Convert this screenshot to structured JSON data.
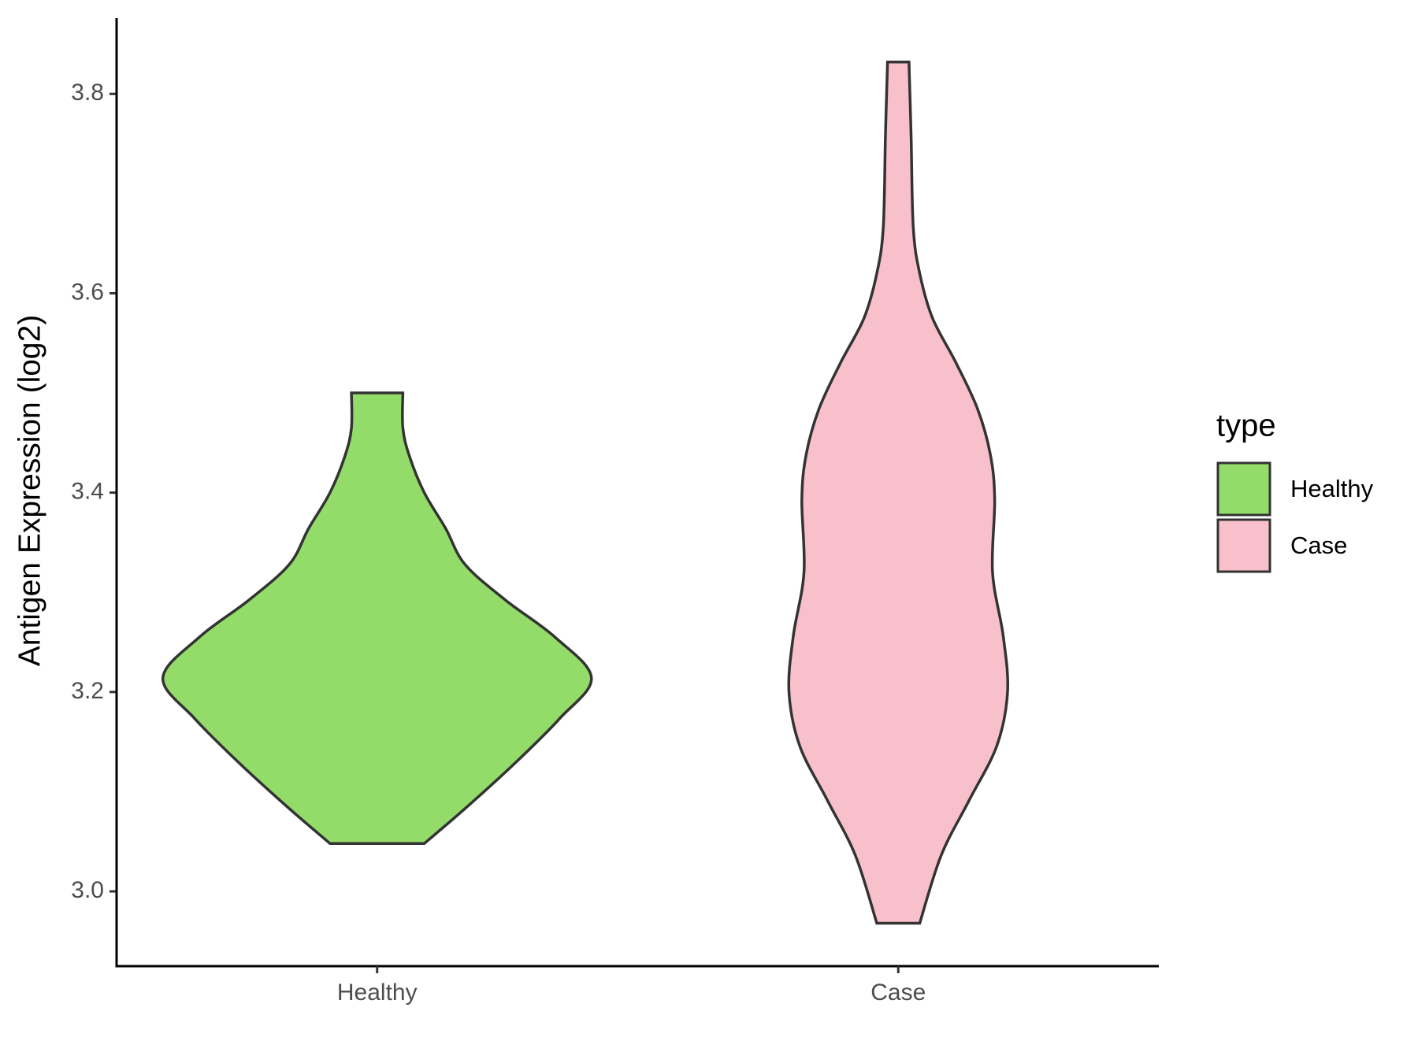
{
  "chart_data": {
    "type": "violin",
    "y_label": "Antigen Expression (log2)",
    "legend_title": "type",
    "categories": [
      "Healthy",
      "Case"
    ],
    "ylim": [
      2.925,
      3.876
    ],
    "yticks": [
      {
        "value": 3.0,
        "label": "3.0"
      },
      3.2,
      3.4,
      3.6,
      3.8
    ],
    "series": [
      {
        "name": "Healthy",
        "color": "#93dc6a",
        "y": [
          3.5,
          3.465,
          3.437,
          3.4,
          3.364,
          3.328,
          3.292,
          3.255,
          3.214,
          3.173,
          3.128,
          3.083,
          3.048
        ],
        "density": [
          0.12,
          0.12,
          0.15,
          0.22,
          0.32,
          0.41,
          0.6,
          0.83,
          1.0,
          0.85,
          0.64,
          0.41,
          0.22
        ]
      },
      {
        "name": "Case",
        "color": "#f8c0cb",
        "y": [
          3.832,
          3.757,
          3.666,
          3.62,
          3.575,
          3.53,
          3.484,
          3.438,
          3.393,
          3.32,
          3.256,
          3.2,
          3.146,
          3.091,
          3.036,
          2.968
        ],
        "density": [
          0.05,
          0.06,
          0.07,
          0.1,
          0.16,
          0.27,
          0.37,
          0.43,
          0.45,
          0.44,
          0.49,
          0.51,
          0.46,
          0.33,
          0.2,
          0.1
        ]
      }
    ]
  }
}
